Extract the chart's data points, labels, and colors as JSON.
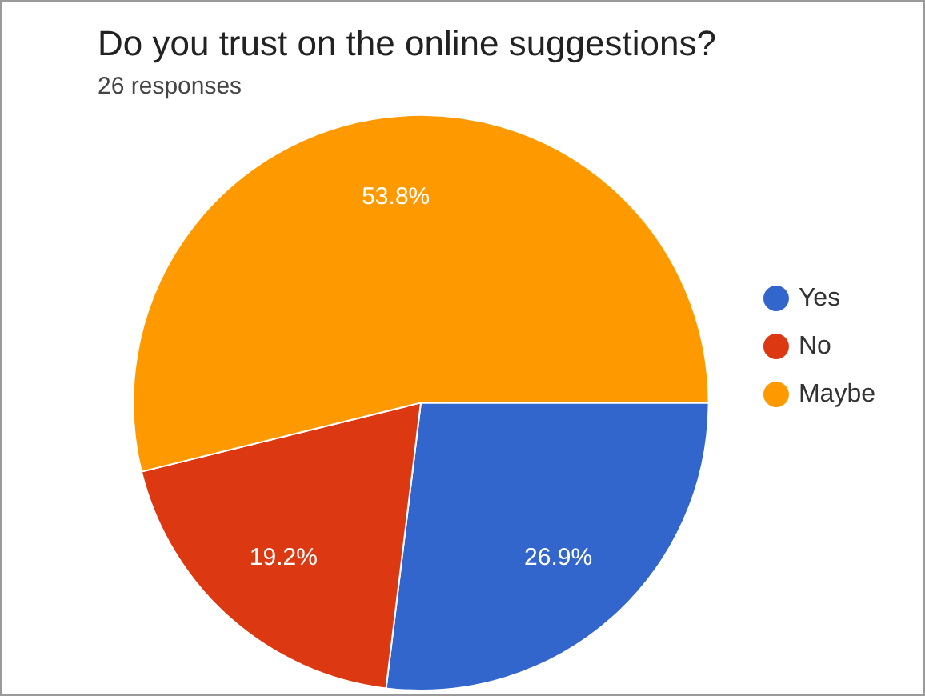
{
  "chart_data": {
    "type": "pie",
    "title": "Do you trust on the online suggestions?",
    "subtitle": "26 responses",
    "categories": [
      "Yes",
      "No",
      "Maybe"
    ],
    "values": [
      26.9,
      19.2,
      53.8
    ],
    "value_labels": [
      "26.9%",
      "19.2%",
      "53.8%"
    ],
    "colors": [
      "#3366cc",
      "#dc3912",
      "#ff9900"
    ],
    "legend": "right"
  }
}
